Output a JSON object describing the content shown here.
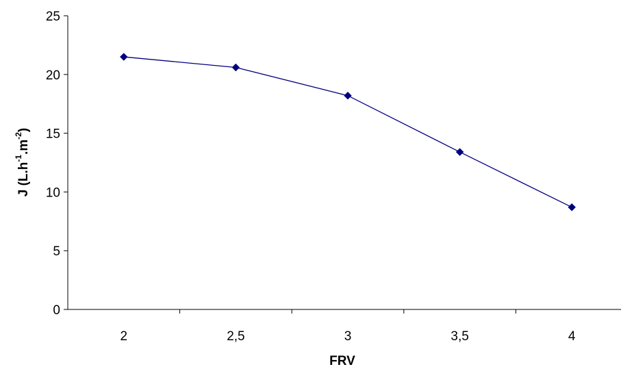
{
  "chart_data": {
    "type": "line",
    "categories": [
      "2",
      "2,5",
      "3",
      "3,5",
      "4"
    ],
    "series": [
      {
        "values": [
          21.5,
          20.6,
          18.2,
          13.4,
          8.7
        ],
        "color": "#00007f",
        "marker": "diamond"
      }
    ],
    "xlabel": "FRV",
    "ylabel": {
      "parts": [
        "J (L.h",
        "-1",
        ".m",
        "-2",
        ")"
      ]
    },
    "ylim": [
      0,
      25
    ],
    "yticks": [
      "0",
      "5",
      "10",
      "15",
      "20",
      "25"
    ],
    "grid": false,
    "legend": "none"
  }
}
